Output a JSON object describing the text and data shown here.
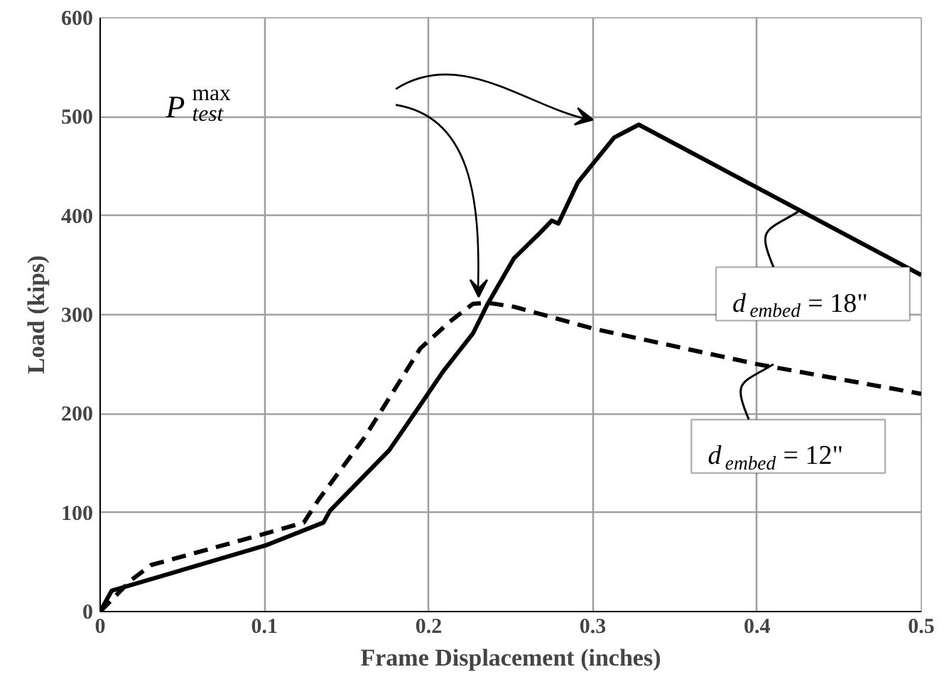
{
  "chart_data": {
    "type": "line",
    "xlabel": "Frame Displacement (inches)",
    "ylabel": "Load (kips)",
    "xlim": [
      0,
      0.5
    ],
    "ylim": [
      0,
      600
    ],
    "xticks": [
      0,
      0.1,
      0.2,
      0.3,
      0.4,
      0.5
    ],
    "yticks": [
      0,
      100,
      200,
      300,
      400,
      500,
      600
    ],
    "grid": true,
    "marker": "none",
    "series": [
      {
        "color": "#000000",
        "line_style": "solid",
        "x": [
          0,
          0.007,
          0.101,
          0.136,
          0.14,
          0.176,
          0.193,
          0.209,
          0.227,
          0.236,
          0.252,
          0.268,
          0.275,
          0.279,
          0.291,
          0.313,
          0.328,
          0.5
        ],
        "values": [
          0,
          21,
          67,
          90,
          102,
          163,
          204,
          243,
          281,
          311,
          357,
          383,
          395,
          392,
          434,
          479,
          492,
          340
        ]
      },
      {
        "color": "#000000",
        "line_style": "dashed",
        "x": [
          0,
          0.019,
          0.031,
          0.101,
          0.124,
          0.133,
          0.161,
          0.195,
          0.213,
          0.227,
          0.236,
          0.252,
          0.3,
          0.4,
          0.5
        ],
        "values": [
          0,
          32,
          47,
          79,
          90,
          113,
          176,
          266,
          293,
          311,
          312,
          308,
          286,
          250,
          220
        ]
      }
    ],
    "annotations": [
      "P$^{max}$$_{test}$",
      {
        "text": "d$_{embed}$ = 18\"",
        "x": 0.425,
        "y": 404
      },
      {
        "text": "d$_{embed}$ = 12\"",
        "x": 0.41,
        "y": 250
      }
    ]
  }
}
